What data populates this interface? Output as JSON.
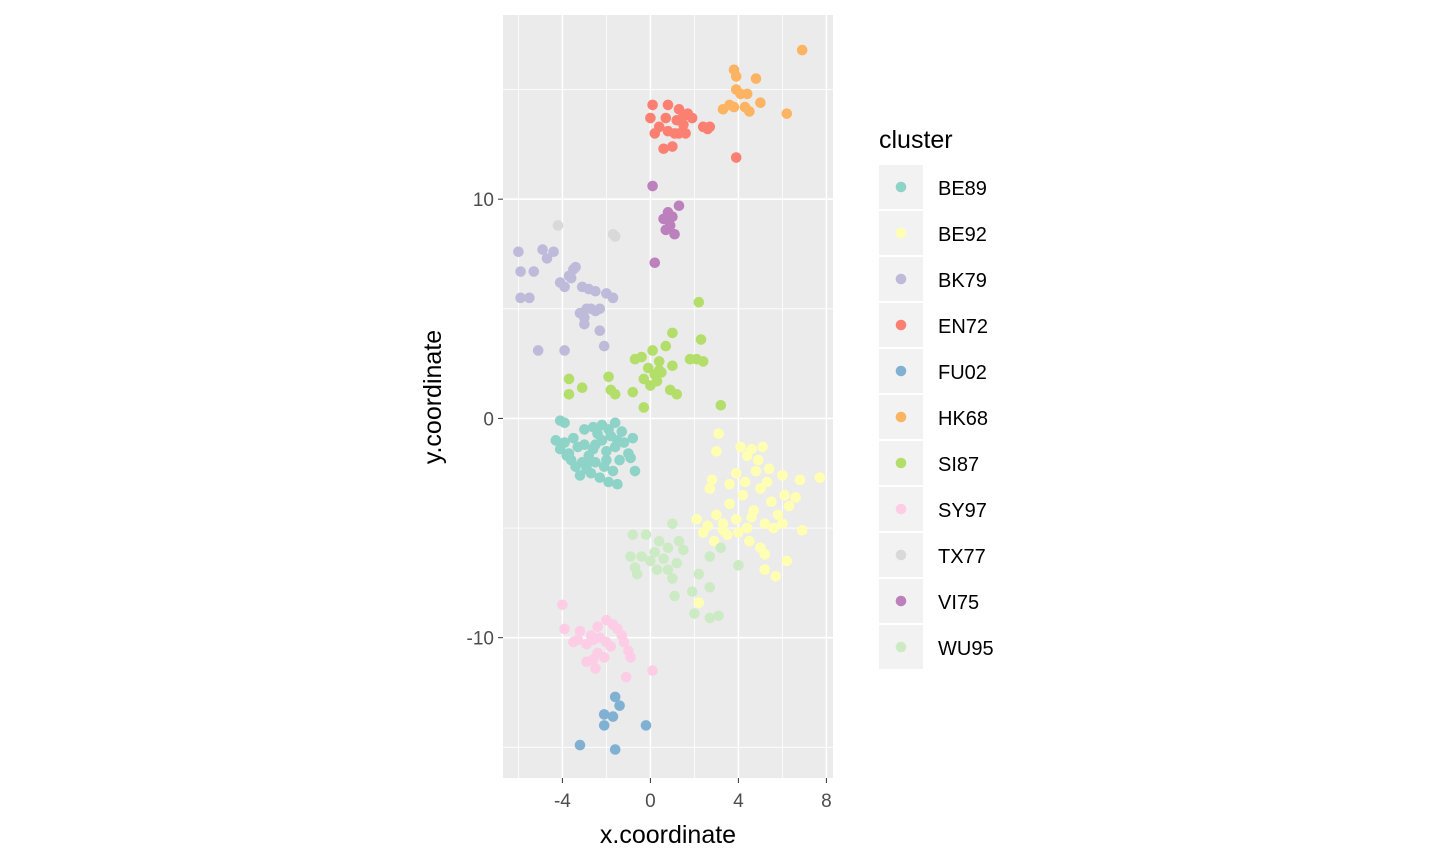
{
  "chart_data": {
    "type": "scatter",
    "xlabel": "x.coordinate",
    "ylabel": "y.coordinate",
    "xlim": [
      -6.7,
      8.3
    ],
    "ylim": [
      -16.4,
      18.4
    ],
    "x_ticks": [
      -4,
      0,
      4,
      8
    ],
    "x_tick_labels": [
      "-4",
      "0",
      "4",
      "8"
    ],
    "y_ticks": [
      -10,
      0,
      10
    ],
    "y_tick_labels": [
      "-10",
      "0",
      "10"
    ],
    "grid": true,
    "legend": {
      "title": "cluster",
      "position": "right"
    },
    "series": [
      {
        "name": "BE89",
        "color": "#8DD3C7",
        "points": [
          [
            -4.3,
            -1.0
          ],
          [
            -4.1,
            -1.4
          ],
          [
            -3.9,
            -1.1
          ],
          [
            -3.7,
            -1.6
          ],
          [
            -3.5,
            -0.9
          ],
          [
            -3.3,
            -1.3
          ],
          [
            -3.0,
            -1.2
          ],
          [
            -2.8,
            -1.7
          ],
          [
            -2.6,
            -1.4
          ],
          [
            -2.4,
            -0.7
          ],
          [
            -2.2,
            -1.0
          ],
          [
            -2.0,
            -1.5
          ],
          [
            -1.8,
            -0.8
          ],
          [
            -1.6,
            -1.3
          ],
          [
            -1.4,
            -1.9
          ],
          [
            -1.2,
            -1.1
          ],
          [
            -1.0,
            -1.6
          ],
          [
            -3.6,
            -1.9
          ],
          [
            -3.4,
            -2.2
          ],
          [
            -3.1,
            -2.0
          ],
          [
            -2.9,
            -2.3
          ],
          [
            -2.7,
            -2.5
          ],
          [
            -2.5,
            -2.0
          ],
          [
            -2.3,
            -2.7
          ],
          [
            -2.1,
            -2.2
          ],
          [
            -1.9,
            -2.9
          ],
          [
            -1.7,
            -2.4
          ],
          [
            -1.5,
            -3.0
          ],
          [
            -3.0,
            -0.5
          ],
          [
            -2.6,
            -0.4
          ],
          [
            -2.2,
            -0.3
          ],
          [
            -1.9,
            -0.5
          ],
          [
            -1.6,
            -0.2
          ],
          [
            -1.3,
            -0.6
          ],
          [
            -0.8,
            -0.9
          ],
          [
            -0.7,
            -2.4
          ],
          [
            -0.9,
            -1.8
          ],
          [
            -2.0,
            -1.9
          ],
          [
            -2.8,
            -2.0
          ],
          [
            -3.2,
            -2.6
          ],
          [
            -3.9,
            -0.2
          ],
          [
            -4.1,
            -0.1
          ],
          [
            -1.5,
            -1.0
          ],
          [
            -2.5,
            -1.2
          ],
          [
            -3.8,
            -1.7
          ]
        ]
      },
      {
        "name": "BE92",
        "color": "#FFFFB3",
        "points": [
          [
            2.1,
            -4.6
          ],
          [
            2.6,
            -4.9
          ],
          [
            3.0,
            -4.4
          ],
          [
            3.3,
            -5.1
          ],
          [
            3.6,
            -3.9
          ],
          [
            3.9,
            -4.6
          ],
          [
            4.2,
            -3.5
          ],
          [
            4.4,
            -5.0
          ],
          [
            4.7,
            -4.2
          ],
          [
            5.0,
            -3.2
          ],
          [
            5.2,
            -4.8
          ],
          [
            5.5,
            -3.8
          ],
          [
            5.8,
            -4.4
          ],
          [
            6.1,
            -3.5
          ],
          [
            6.3,
            -4.0
          ],
          [
            6.6,
            -3.6
          ],
          [
            6.9,
            -5.1
          ],
          [
            7.7,
            -2.7
          ],
          [
            6.8,
            -2.8
          ],
          [
            6.0,
            -2.6
          ],
          [
            5.4,
            -2.3
          ],
          [
            4.9,
            -1.9
          ],
          [
            4.4,
            -1.7
          ],
          [
            4.1,
            -1.3
          ],
          [
            4.6,
            -1.4
          ],
          [
            5.1,
            -1.3
          ],
          [
            3.0,
            -1.5
          ],
          [
            3.1,
            -0.7
          ],
          [
            2.8,
            -2.8
          ],
          [
            2.7,
            -3.2
          ],
          [
            3.6,
            -3.0
          ],
          [
            3.9,
            -2.5
          ],
          [
            4.3,
            -2.9
          ],
          [
            4.8,
            -2.4
          ],
          [
            5.3,
            -2.9
          ],
          [
            2.4,
            -5.2
          ],
          [
            2.9,
            -5.6
          ],
          [
            3.5,
            -5.3
          ],
          [
            4.0,
            -5.2
          ],
          [
            4.5,
            -5.6
          ],
          [
            5.0,
            -5.9
          ],
          [
            5.2,
            -6.2
          ],
          [
            5.2,
            -6.9
          ],
          [
            5.7,
            -7.2
          ],
          [
            6.2,
            -6.5
          ],
          [
            2.2,
            -8.4
          ],
          [
            4.6,
            -4.5
          ],
          [
            3.3,
            -4.8
          ],
          [
            5.6,
            -5.0
          ],
          [
            6.0,
            -4.8
          ]
        ]
      },
      {
        "name": "BK79",
        "color": "#BEBADA",
        "points": [
          [
            -6.0,
            7.6
          ],
          [
            -5.9,
            6.7
          ],
          [
            -5.9,
            5.5
          ],
          [
            -5.5,
            5.5
          ],
          [
            -5.3,
            6.7
          ],
          [
            -4.9,
            7.7
          ],
          [
            -4.7,
            7.3
          ],
          [
            -4.4,
            7.6
          ],
          [
            -4.1,
            6.2
          ],
          [
            -3.9,
            6.0
          ],
          [
            -3.7,
            6.5
          ],
          [
            -3.5,
            6.8
          ],
          [
            -3.4,
            6.9
          ],
          [
            -3.6,
            6.4
          ],
          [
            -3.1,
            6.0
          ],
          [
            -2.8,
            5.9
          ],
          [
            -2.7,
            5.0
          ],
          [
            -2.5,
            5.8
          ],
          [
            -2.3,
            5.0
          ],
          [
            -2.0,
            5.7
          ],
          [
            -1.7,
            5.5
          ],
          [
            -3.0,
            4.6
          ],
          [
            -3.0,
            4.3
          ],
          [
            -2.3,
            4.0
          ],
          [
            -2.1,
            3.3
          ],
          [
            -5.1,
            3.1
          ],
          [
            -3.9,
            3.1
          ],
          [
            -3.2,
            4.8
          ],
          [
            -2.9,
            5.0
          ],
          [
            -2.5,
            4.9
          ]
        ]
      },
      {
        "name": "EN72",
        "color": "#FB8072",
        "points": [
          [
            0.1,
            14.3
          ],
          [
            0.8,
            14.3
          ],
          [
            1.3,
            14.1
          ],
          [
            1.5,
            13.8
          ],
          [
            1.7,
            13.9
          ],
          [
            1.9,
            13.7
          ],
          [
            0.0,
            13.7
          ],
          [
            0.7,
            13.7
          ],
          [
            1.2,
            13.6
          ],
          [
            1.5,
            13.4
          ],
          [
            0.4,
            13.3
          ],
          [
            0.8,
            13.1
          ],
          [
            1.1,
            13.0
          ],
          [
            1.3,
            13.0
          ],
          [
            1.6,
            13.0
          ],
          [
            2.4,
            13.3
          ],
          [
            2.7,
            13.3
          ],
          [
            0.6,
            12.3
          ],
          [
            1.0,
            12.4
          ],
          [
            0.2,
            13.0
          ],
          [
            3.9,
            11.9
          ],
          [
            2.6,
            13.2
          ]
        ]
      },
      {
        "name": "FU02",
        "color": "#80B1D3",
        "points": [
          [
            -1.6,
            -12.7
          ],
          [
            -2.1,
            -13.5
          ],
          [
            -1.7,
            -13.6
          ],
          [
            -1.4,
            -13.1
          ],
          [
            -2.1,
            -14.0
          ],
          [
            -0.2,
            -14.0
          ],
          [
            -3.2,
            -14.9
          ],
          [
            -1.6,
            -15.1
          ]
        ]
      },
      {
        "name": "HK68",
        "color": "#FDB462",
        "points": [
          [
            6.9,
            16.8
          ],
          [
            3.8,
            15.9
          ],
          [
            3.9,
            15.6
          ],
          [
            4.8,
            15.5
          ],
          [
            3.9,
            15.0
          ],
          [
            4.1,
            14.8
          ],
          [
            4.4,
            14.8
          ],
          [
            5.0,
            14.4
          ],
          [
            3.8,
            14.2
          ],
          [
            4.3,
            14.2
          ],
          [
            4.5,
            14.0
          ],
          [
            3.3,
            14.1
          ],
          [
            6.2,
            13.9
          ],
          [
            3.6,
            14.3
          ]
        ]
      },
      {
        "name": "SI87",
        "color": "#B3DE69",
        "points": [
          [
            2.2,
            5.3
          ],
          [
            1.0,
            3.9
          ],
          [
            2.3,
            3.6
          ],
          [
            0.7,
            3.3
          ],
          [
            0.1,
            3.1
          ],
          [
            -0.7,
            2.7
          ],
          [
            -0.4,
            2.8
          ],
          [
            -0.1,
            2.3
          ],
          [
            0.2,
            2.0
          ],
          [
            0.4,
            2.6
          ],
          [
            0.5,
            2.1
          ],
          [
            1.0,
            2.4
          ],
          [
            1.8,
            2.7
          ],
          [
            2.1,
            2.7
          ],
          [
            2.4,
            2.6
          ],
          [
            0.3,
            1.7
          ],
          [
            0.0,
            1.5
          ],
          [
            -0.3,
            1.8
          ],
          [
            -1.9,
            1.9
          ],
          [
            -1.8,
            1.3
          ],
          [
            -1.6,
            1.1
          ],
          [
            -0.8,
            1.2
          ],
          [
            0.9,
            1.3
          ],
          [
            1.2,
            1.1
          ],
          [
            -3.7,
            1.8
          ],
          [
            -3.7,
            1.1
          ],
          [
            -3.1,
            1.4
          ],
          [
            3.2,
            0.6
          ],
          [
            -0.3,
            0.5
          ],
          [
            0.4,
            2.2
          ]
        ]
      },
      {
        "name": "SY97",
        "color": "#FCCDE5",
        "points": [
          [
            -4.0,
            -8.5
          ],
          [
            -3.9,
            -9.6
          ],
          [
            -3.2,
            -9.7
          ],
          [
            -2.7,
            -9.9
          ],
          [
            -2.4,
            -9.5
          ],
          [
            -2.0,
            -9.2
          ],
          [
            -1.7,
            -9.4
          ],
          [
            -1.5,
            -9.6
          ],
          [
            -1.3,
            -9.9
          ],
          [
            -1.2,
            -10.2
          ],
          [
            -1.0,
            -10.6
          ],
          [
            -0.9,
            -10.9
          ],
          [
            -2.0,
            -10.2
          ],
          [
            -2.3,
            -10.0
          ],
          [
            -2.6,
            -10.1
          ],
          [
            -2.9,
            -10.3
          ],
          [
            -3.3,
            -10.1
          ],
          [
            -3.5,
            -10.2
          ],
          [
            -2.4,
            -10.7
          ],
          [
            -2.1,
            -10.9
          ],
          [
            -2.6,
            -11.0
          ],
          [
            -2.9,
            -11.1
          ],
          [
            -2.5,
            -11.4
          ],
          [
            -1.1,
            -11.8
          ],
          [
            0.1,
            -11.5
          ],
          [
            -1.8,
            -10.4
          ]
        ]
      },
      {
        "name": "TX77",
        "color": "#D9D9D9",
        "points": [
          [
            -4.2,
            8.8
          ],
          [
            -1.7,
            8.4
          ],
          [
            -1.6,
            8.3
          ]
        ]
      },
      {
        "name": "VI75",
        "color": "#BC80BD",
        "points": [
          [
            0.1,
            10.6
          ],
          [
            1.3,
            9.7
          ],
          [
            0.8,
            9.4
          ],
          [
            0.6,
            9.1
          ],
          [
            1.0,
            9.2
          ],
          [
            0.9,
            8.8
          ],
          [
            0.7,
            8.6
          ],
          [
            1.1,
            8.4
          ],
          [
            0.2,
            7.1
          ]
        ]
      },
      {
        "name": "WU95",
        "color": "#CCEBC5",
        "points": [
          [
            1.0,
            -4.8
          ],
          [
            -0.8,
            -5.3
          ],
          [
            -0.2,
            -5.3
          ],
          [
            0.4,
            -5.6
          ],
          [
            0.8,
            -5.9
          ],
          [
            1.3,
            -5.6
          ],
          [
            1.5,
            -6.0
          ],
          [
            0.2,
            -6.1
          ],
          [
            0.6,
            -6.4
          ],
          [
            0.0,
            -6.5
          ],
          [
            -0.4,
            -6.3
          ],
          [
            -0.9,
            -6.3
          ],
          [
            1.2,
            -6.6
          ],
          [
            0.3,
            -6.9
          ],
          [
            -0.7,
            -6.8
          ],
          [
            -0.6,
            -7.1
          ],
          [
            2.7,
            -6.3
          ],
          [
            3.2,
            -5.9
          ],
          [
            4.0,
            -6.7
          ],
          [
            2.2,
            -7.1
          ],
          [
            1.0,
            -7.3
          ],
          [
            2.7,
            -7.7
          ],
          [
            1.9,
            -7.9
          ],
          [
            1.1,
            -8.1
          ],
          [
            2.0,
            -8.9
          ],
          [
            2.7,
            -9.1
          ],
          [
            3.1,
            -9.0
          ],
          [
            0.8,
            -6.9
          ]
        ]
      }
    ]
  }
}
